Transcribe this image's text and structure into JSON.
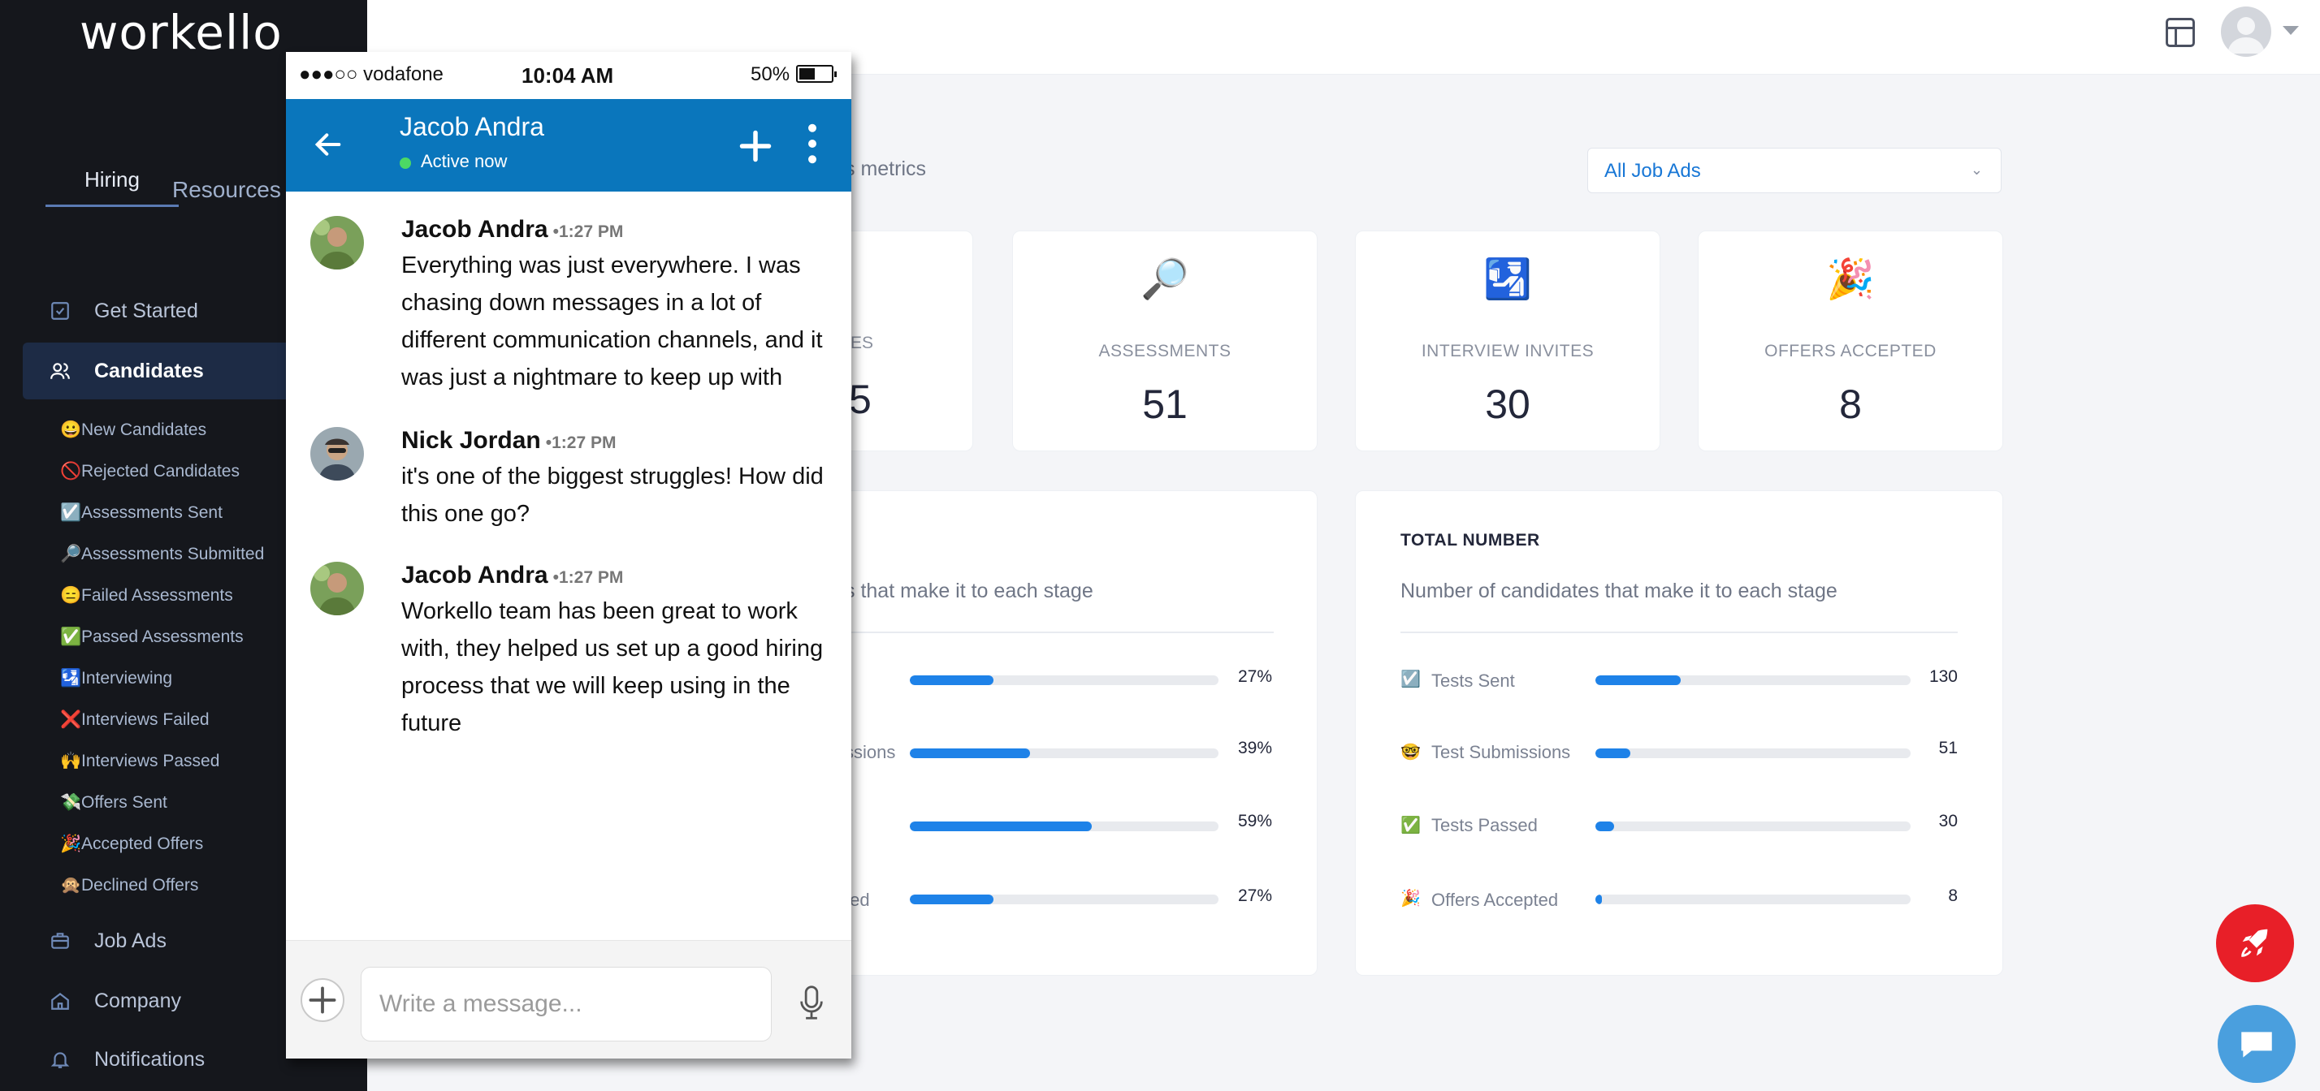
{
  "app": {
    "logo": "workello"
  },
  "sidebar": {
    "tabs": [
      {
        "label": "Hiring"
      },
      {
        "label": "Resources"
      }
    ],
    "nav": {
      "get_started": "Get Started",
      "candidates": "Candidates",
      "job_ads": "Job Ads",
      "company": "Company",
      "notifications": "Notifications"
    },
    "sub_items": [
      {
        "emoji": "😀",
        "label": "New Candidates"
      },
      {
        "emoji": "🚫",
        "label": "Rejected Candidates"
      },
      {
        "emoji": "☑️",
        "label": "Assessments Sent"
      },
      {
        "emoji": "🔎",
        "label": "Assessments Submitted"
      },
      {
        "emoji": "😑",
        "label": "Failed Assessments"
      },
      {
        "emoji": "✅",
        "label": "Passed Assessments"
      },
      {
        "emoji": "🛂",
        "label": "Interviewing"
      },
      {
        "emoji": "❌",
        "label": "Interviews Failed"
      },
      {
        "emoji": "🙌",
        "label": "Interviews Passed"
      },
      {
        "emoji": "💸",
        "label": "Offers Sent"
      },
      {
        "emoji": "🎉",
        "label": "Accepted Offers"
      },
      {
        "emoji": "🙊",
        "label": "Declined Offers"
      }
    ]
  },
  "dashboard": {
    "metrics_label": "s metrics",
    "filter": {
      "selected": "All Job Ads"
    },
    "partial_stat": {
      "label": "ES",
      "value": "5"
    },
    "stats": [
      {
        "icon": "🔎",
        "label": "ASSESSMENTS",
        "value": "51"
      },
      {
        "icon": "🛂",
        "label": "INTERVIEW INVITES",
        "value": "30"
      },
      {
        "icon": "🎉",
        "label": "OFFERS ACCEPTED",
        "value": "8"
      }
    ],
    "left_panel": {
      "subtitle": "s that make it to each stage",
      "rows": [
        {
          "label": "",
          "pct": "27%",
          "fraction": 0.27
        },
        {
          "label": "ssions",
          "pct": "39%",
          "fraction": 0.39
        },
        {
          "label": "",
          "pct": "59%",
          "fraction": 0.59
        },
        {
          "label": "ted",
          "pct": "27%",
          "fraction": 0.27
        }
      ]
    },
    "right_panel": {
      "title": "TOTAL NUMBER",
      "subtitle": "Number of candidates that make it to each stage",
      "rows": [
        {
          "emoji": "☑️",
          "label": "Tests Sent",
          "value": "130",
          "fraction": 0.27
        },
        {
          "emoji": "🤓",
          "label": "Test Submissions",
          "value": "51",
          "fraction": 0.11
        },
        {
          "emoji": "✅",
          "label": "Tests Passed",
          "value": "30",
          "fraction": 0.06
        },
        {
          "emoji": "🎉",
          "label": "Offers Accepted",
          "value": "8",
          "fraction": 0.02
        }
      ]
    }
  },
  "phone": {
    "status": {
      "carrier": "●●●○○ vodafone",
      "time": "10:04 AM",
      "battery": "50%",
      "battery_level": 0.5
    },
    "header": {
      "name": "Jacob Andra",
      "status": "Active now"
    },
    "messages": [
      {
        "name": "Jacob Andra",
        "time": "•1:27 PM",
        "text": "Everything was just everywhere. I was chasing down messages in a lot of different communication channels, and it was just a nightmare to keep up with"
      },
      {
        "name": "Nick Jordan",
        "time": "•1:27 PM",
        "text": "it's one of the biggest struggles! How did this one go?"
      },
      {
        "name": "Jacob Andra",
        "time": "•1:27 PM",
        "text": "Workello team has been great to work with, they helped us set up a good hiring process that we will keep using in the future"
      }
    ],
    "composer": {
      "placeholder": "Write a message..."
    }
  },
  "colors": {
    "accent": "#1e82e8",
    "chat_header": "#0a76bc",
    "sidebar": "#15171c",
    "fab_red": "#e81f28",
    "fab_blue": "#4a9fde"
  }
}
